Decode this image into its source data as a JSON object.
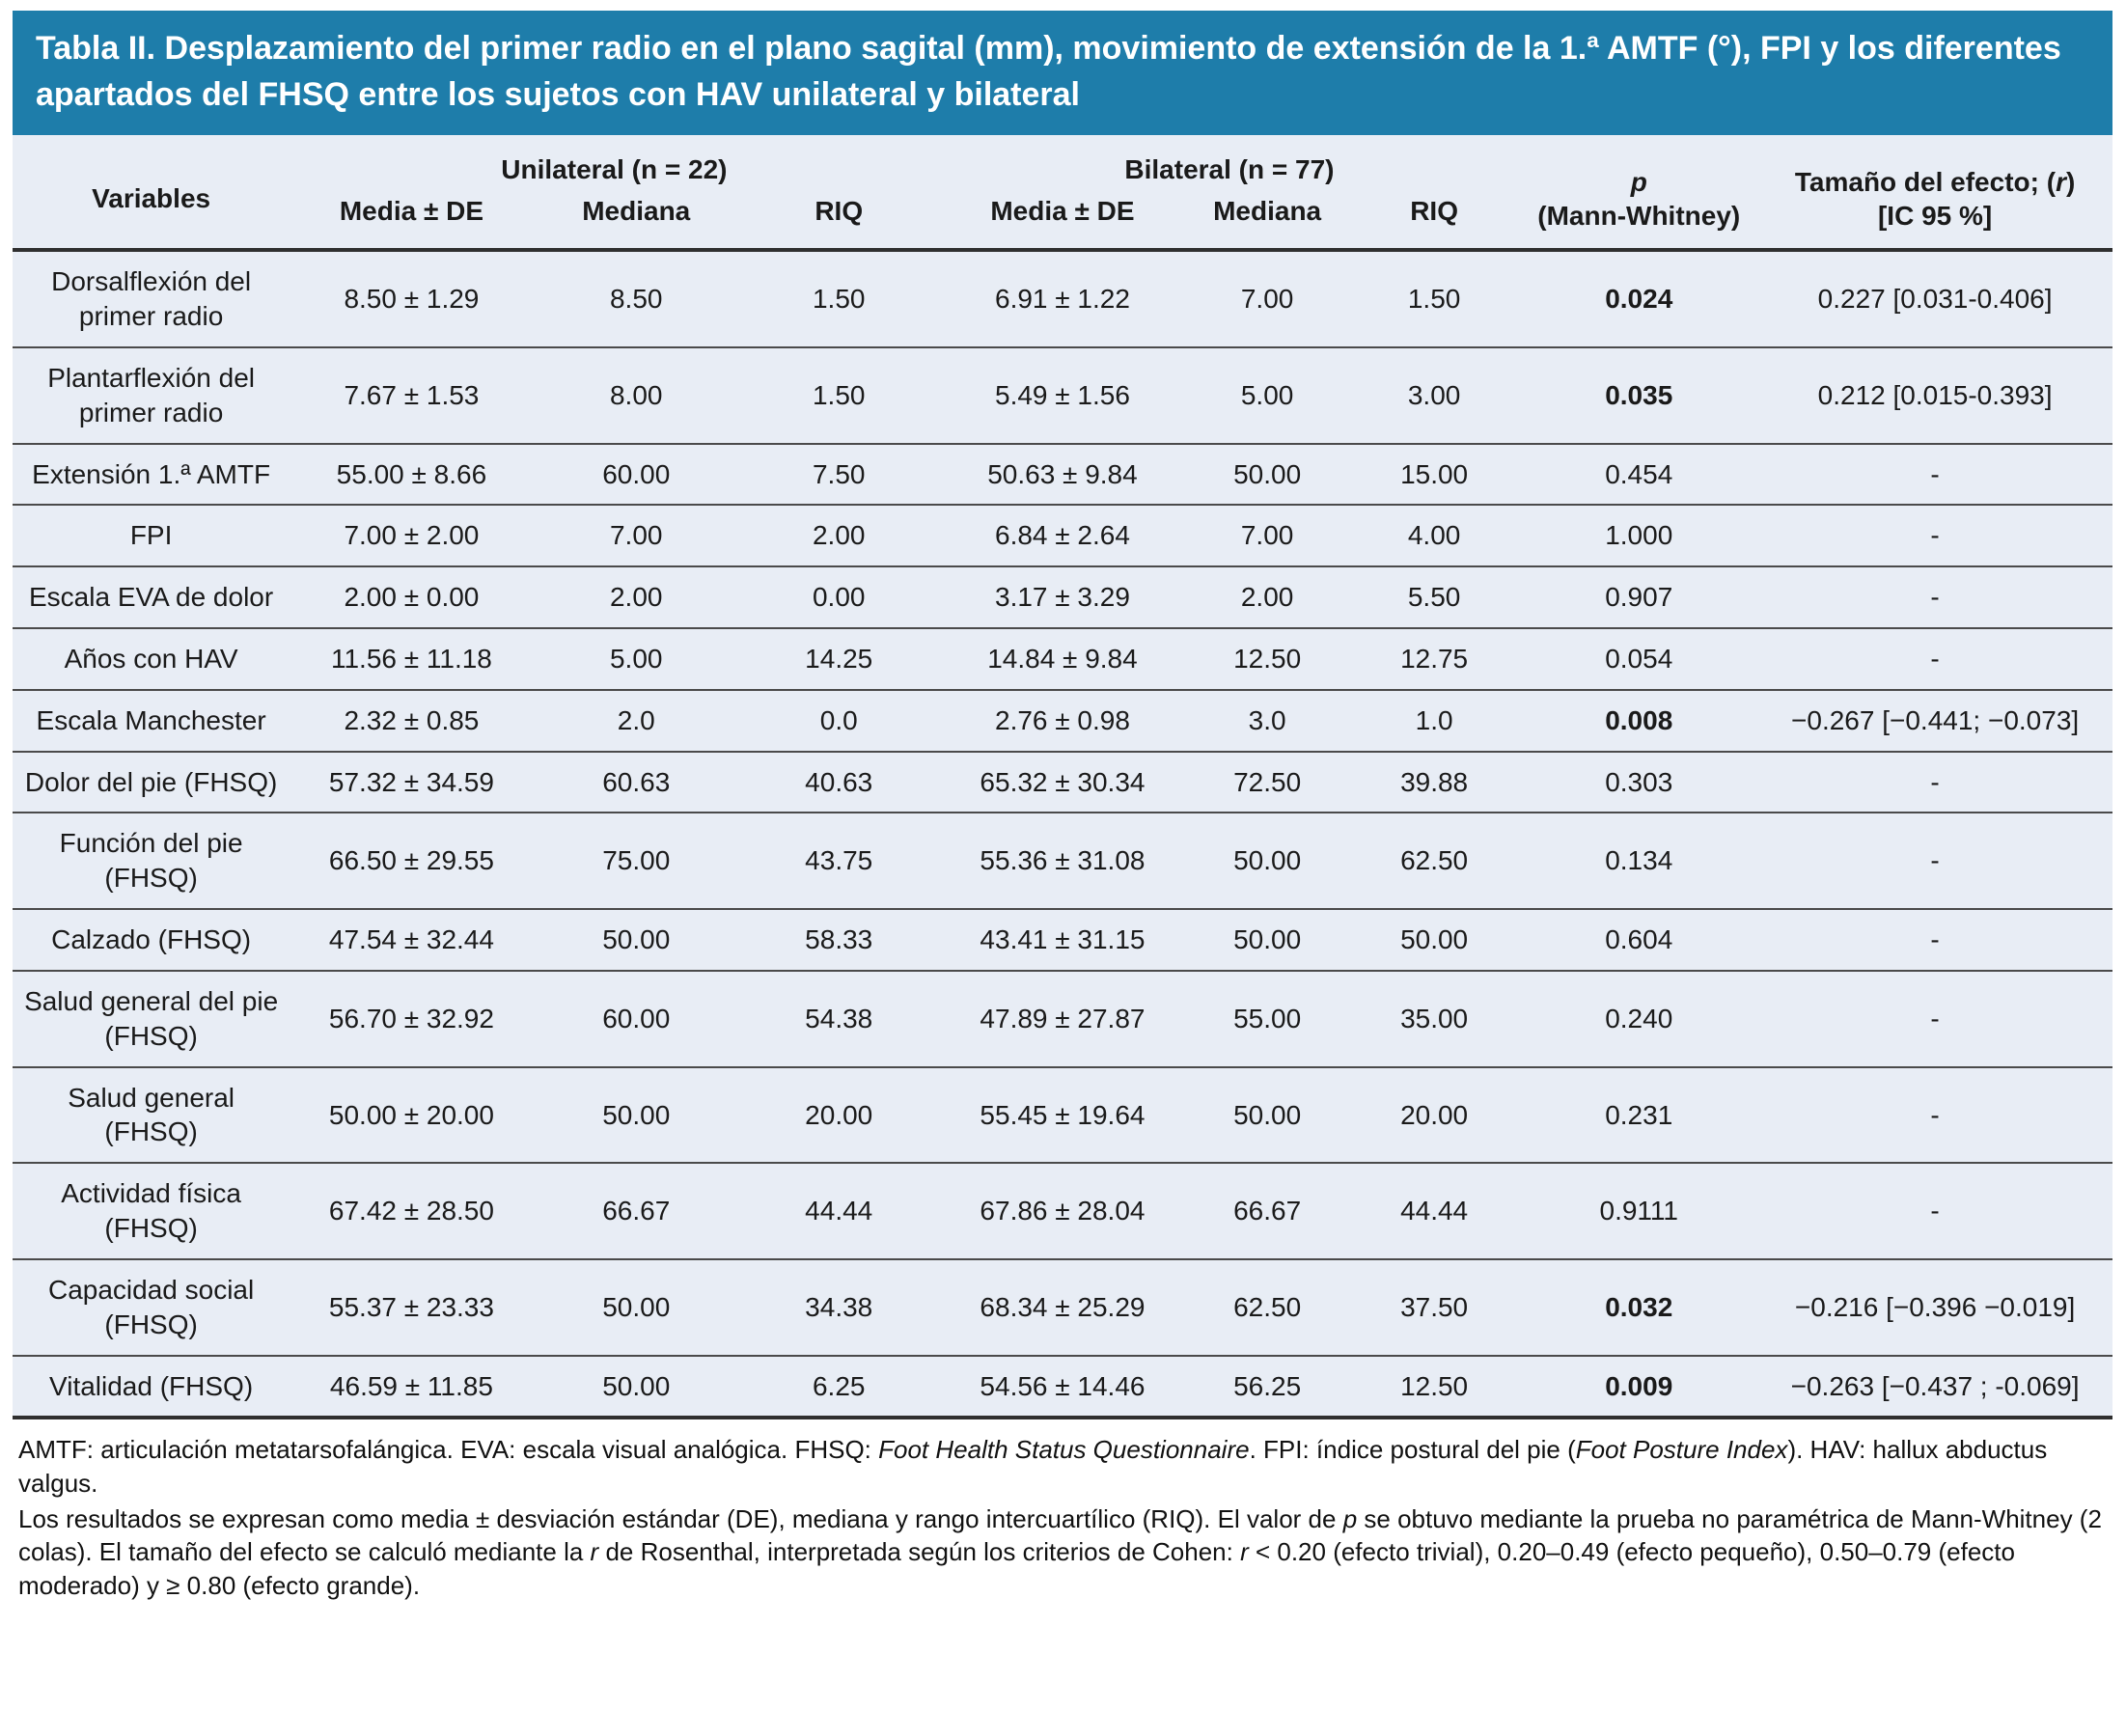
{
  "title": "Tabla II. Desplazamiento del primer radio en el plano sagital (mm), movimiento de extensión de la 1.ª AMTF (°), FPI y los diferentes apartados del FHSQ entre los sujetos con HAV unilateral y bilateral",
  "colors": {
    "title_bar_bg": "#1e7daa",
    "title_text": "#ffffff",
    "table_bg": "#e8edf5",
    "rule_color": "#2f2f2f"
  },
  "table": {
    "header": {
      "variables": "Variables",
      "group_unilateral": "Unilateral (n = 22)",
      "group_bilateral": "Bilateral (n = 77)",
      "sub_media_uni": "Media ± DE",
      "sub_mediana_uni": "Mediana",
      "sub_riq_uni": "RIQ",
      "sub_media_bil": "Media ± DE",
      "sub_mediana_bil": "Mediana",
      "sub_riq_bil": "RIQ",
      "p_line1": "p",
      "p_line2": "(Mann-Whitney)",
      "effect_line1_segments": [
        {
          "t": "Tamaño del efecto; ("
        },
        {
          "t": "r",
          "i": true
        },
        {
          "t": ")"
        }
      ],
      "effect_line2": "[IC 95 %]"
    },
    "rows": [
      {
        "variable": "Dorsalflexión del primer radio",
        "unilateral": {
          "media_de": "8.50 ± 1.29",
          "mediana": "8.50",
          "riq": "1.50"
        },
        "bilateral": {
          "media_de": "6.91 ± 1.22",
          "mediana": "7.00",
          "riq": "1.50"
        },
        "p_value": "0.024",
        "p_significant": true,
        "effect_size": "0.227 [0.031-0.406]"
      },
      {
        "variable": "Plantarflexión del primer radio",
        "unilateral": {
          "media_de": "7.67 ± 1.53",
          "mediana": "8.00",
          "riq": "1.50"
        },
        "bilateral": {
          "media_de": "5.49 ± 1.56",
          "mediana": "5.00",
          "riq": "3.00"
        },
        "p_value": "0.035",
        "p_significant": true,
        "effect_size": "0.212 [0.015-0.393]"
      },
      {
        "variable": "Extensión 1.ª AMTF",
        "unilateral": {
          "media_de": "55.00 ± 8.66",
          "mediana": "60.00",
          "riq": "7.50"
        },
        "bilateral": {
          "media_de": "50.63 ± 9.84",
          "mediana": "50.00",
          "riq": "15.00"
        },
        "p_value": "0.454",
        "p_significant": false,
        "effect_size": "-"
      },
      {
        "variable": "FPI",
        "unilateral": {
          "media_de": "7.00 ± 2.00",
          "mediana": "7.00",
          "riq": "2.00"
        },
        "bilateral": {
          "media_de": "6.84 ± 2.64",
          "mediana": "7.00",
          "riq": "4.00"
        },
        "p_value": "1.000",
        "p_significant": false,
        "effect_size": "-"
      },
      {
        "variable": "Escala EVA de dolor",
        "unilateral": {
          "media_de": "2.00 ± 0.00",
          "mediana": "2.00",
          "riq": "0.00"
        },
        "bilateral": {
          "media_de": "3.17 ± 3.29",
          "mediana": "2.00",
          "riq": "5.50"
        },
        "p_value": "0.907",
        "p_significant": false,
        "effect_size": "-"
      },
      {
        "variable": "Años con HAV",
        "unilateral": {
          "media_de": "11.56 ± 11.18",
          "mediana": "5.00",
          "riq": "14.25"
        },
        "bilateral": {
          "media_de": "14.84 ± 9.84",
          "mediana": "12.50",
          "riq": "12.75"
        },
        "p_value": "0.054",
        "p_significant": false,
        "effect_size": "-"
      },
      {
        "variable": "Escala Manchester",
        "unilateral": {
          "media_de": "2.32 ± 0.85",
          "mediana": "2.0",
          "riq": "0.0"
        },
        "bilateral": {
          "media_de": "2.76 ± 0.98",
          "mediana": "3.0",
          "riq": "1.0"
        },
        "p_value": "0.008",
        "p_significant": true,
        "effect_size": "−0.267 [−0.441; −0.073]"
      },
      {
        "variable": "Dolor del pie (FHSQ)",
        "unilateral": {
          "media_de": "57.32 ± 34.59",
          "mediana": "60.63",
          "riq": "40.63"
        },
        "bilateral": {
          "media_de": "65.32 ± 30.34",
          "mediana": "72.50",
          "riq": "39.88"
        },
        "p_value": "0.303",
        "p_significant": false,
        "effect_size": "-"
      },
      {
        "variable": "Función del pie (FHSQ)",
        "unilateral": {
          "media_de": "66.50 ± 29.55",
          "mediana": "75.00",
          "riq": "43.75"
        },
        "bilateral": {
          "media_de": "55.36 ± 31.08",
          "mediana": "50.00",
          "riq": "62.50"
        },
        "p_value": "0.134",
        "p_significant": false,
        "effect_size": "-"
      },
      {
        "variable": "Calzado (FHSQ)",
        "unilateral": {
          "media_de": "47.54 ± 32.44",
          "mediana": "50.00",
          "riq": "58.33"
        },
        "bilateral": {
          "media_de": "43.41 ± 31.15",
          "mediana": "50.00",
          "riq": "50.00"
        },
        "p_value": "0.604",
        "p_significant": false,
        "effect_size": "-"
      },
      {
        "variable": "Salud general del pie (FHSQ)",
        "unilateral": {
          "media_de": "56.70 ± 32.92",
          "mediana": "60.00",
          "riq": "54.38"
        },
        "bilateral": {
          "media_de": "47.89 ± 27.87",
          "mediana": "55.00",
          "riq": "35.00"
        },
        "p_value": "0.240",
        "p_significant": false,
        "effect_size": "-"
      },
      {
        "variable": "Salud general (FHSQ)",
        "unilateral": {
          "media_de": "50.00 ± 20.00",
          "mediana": "50.00",
          "riq": "20.00"
        },
        "bilateral": {
          "media_de": "55.45 ± 19.64",
          "mediana": "50.00",
          "riq": "20.00"
        },
        "p_value": "0.231",
        "p_significant": false,
        "effect_size": "-"
      },
      {
        "variable": "Actividad física (FHSQ)",
        "unilateral": {
          "media_de": "67.42 ± 28.50",
          "mediana": "66.67",
          "riq": "44.44"
        },
        "bilateral": {
          "media_de": "67.86 ± 28.04",
          "mediana": "66.67",
          "riq": "44.44"
        },
        "p_value": "0.9111",
        "p_significant": false,
        "effect_size": "-"
      },
      {
        "variable": "Capacidad social (FHSQ)",
        "unilateral": {
          "media_de": "55.37 ± 23.33",
          "mediana": "50.00",
          "riq": "34.38"
        },
        "bilateral": {
          "media_de": "68.34 ± 25.29",
          "mediana": "62.50",
          "riq": "37.50"
        },
        "p_value": "0.032",
        "p_significant": true,
        "effect_size": "−0.216 [−0.396 −0.019]"
      },
      {
        "variable": "Vitalidad (FHSQ)",
        "unilateral": {
          "media_de": "46.59 ± 11.85",
          "mediana": "50.00",
          "riq": "6.25"
        },
        "bilateral": {
          "media_de": "54.56 ± 14.46",
          "mediana": "56.25",
          "riq": "12.50"
        },
        "p_value": "0.009",
        "p_significant": true,
        "effect_size": "−0.263 [−0.437 ; -0.069]"
      }
    ]
  },
  "footnotes": [
    {
      "segments": [
        {
          "t": "AMTF: articulación metatarsofalángica. EVA: escala visual analógica. FHSQ: "
        },
        {
          "t": "Foot Health Status Questionnaire",
          "i": true
        },
        {
          "t": ". FPI: índice postural del pie ("
        },
        {
          "t": "Foot Posture Index",
          "i": true
        },
        {
          "t": "). HAV: hallux abductus valgus."
        }
      ]
    },
    {
      "segments": [
        {
          "t": "Los resultados se expresan como media ± desviación estándar (DE), mediana y rango intercuartílico (RIQ). El valor de "
        },
        {
          "t": "p",
          "i": true
        },
        {
          "t": " se obtuvo mediante la prueba no paramétrica de Mann-Whitney (2 colas). El tamaño del efecto se calculó mediante la "
        },
        {
          "t": "r",
          "i": true
        },
        {
          "t": " de Rosenthal, interpretada según los criterios de Cohen: "
        },
        {
          "t": "r",
          "i": true
        },
        {
          "t": " < 0.20 (efecto trivial), 0.20–0.49 (efecto pequeño), 0.50–0.79 (efecto moderado) y ≥ 0.80 (efecto grande)."
        }
      ]
    }
  ]
}
